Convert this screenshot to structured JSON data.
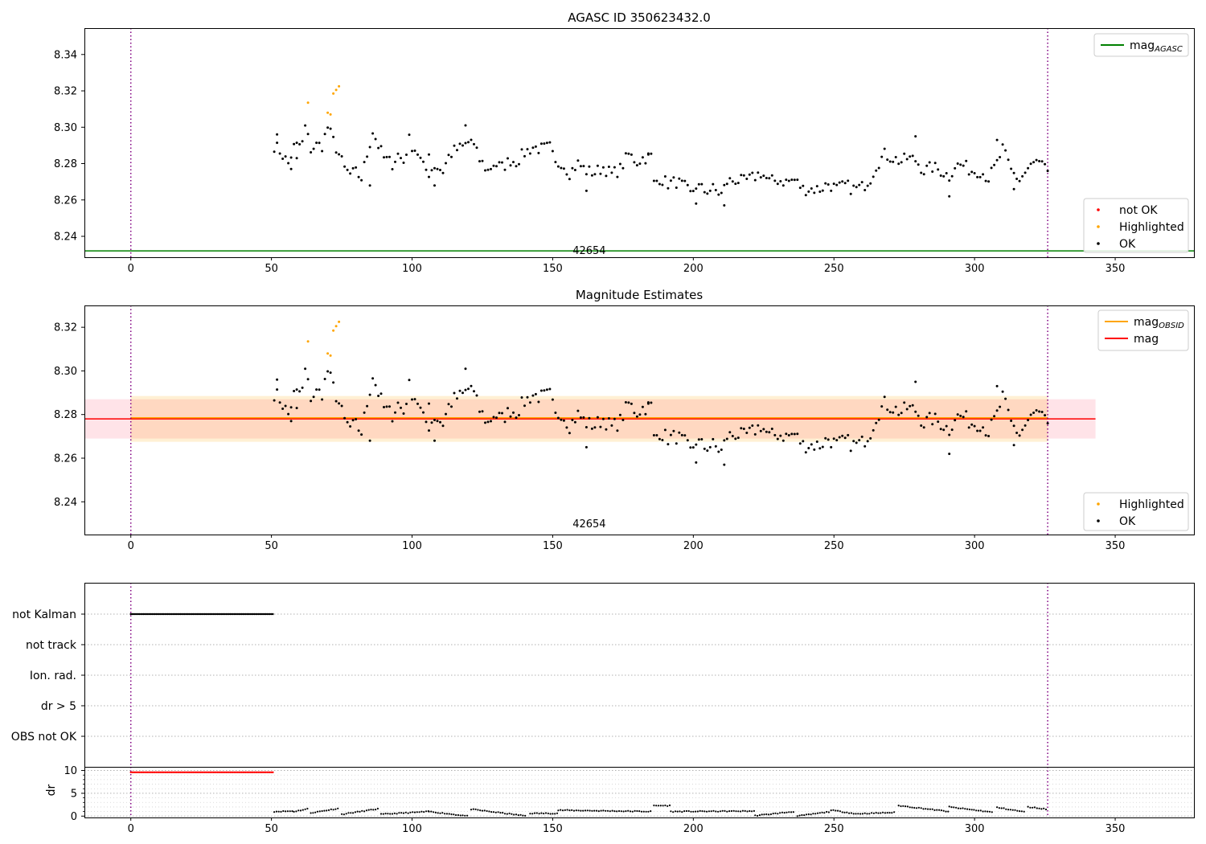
{
  "chart_data": [
    {
      "type": "scatter",
      "title": "AGASC ID 350623432.0",
      "xlim": [
        -16.5,
        378
      ],
      "ylim": [
        8.2285,
        8.3545
      ],
      "xticks": [
        0,
        50,
        100,
        150,
        200,
        250,
        300,
        350
      ],
      "yticks": [
        8.24,
        8.26,
        8.28,
        8.3,
        8.32,
        8.34
      ],
      "grid": false,
      "vlines": [
        0,
        326
      ],
      "hlines": [
        {
          "name": "mag_AGASC",
          "y": 8.232,
          "color": "#008000"
        }
      ],
      "annotation": {
        "text": "42654",
        "x": 163,
        "y": 8.2315
      },
      "legends": [
        {
          "placement": "upper right",
          "entries": [
            {
              "label": "mag",
              "sub": "AGASC",
              "kind": "line",
              "color": "#008000"
            }
          ]
        },
        {
          "placement": "lower right",
          "entries": [
            {
              "label": "not OK",
              "kind": "dot",
              "color": "#ff0000"
            },
            {
              "label": "Highlighted",
              "kind": "dot",
              "color": "#ffa500"
            },
            {
              "label": "OK",
              "kind": "dot",
              "color": "#000000"
            }
          ]
        }
      ],
      "series_ref": [
        "highlighted",
        "ok"
      ]
    },
    {
      "type": "scatter",
      "title": "Magnitude Estimates",
      "xlim": [
        -16.5,
        378
      ],
      "ylim": [
        8.225,
        8.33
      ],
      "xticks": [
        0,
        50,
        100,
        150,
        200,
        250,
        300,
        350
      ],
      "yticks": [
        8.24,
        8.26,
        8.28,
        8.3,
        8.32
      ],
      "grid": false,
      "vlines": [
        0,
        326
      ],
      "hlines": [
        {
          "name": "mag",
          "y": 8.278,
          "color": "#ff0000"
        },
        {
          "name": "mag_OBSID",
          "y": 8.2785,
          "x_range": [
            0,
            326
          ],
          "color": "#ffa500"
        }
      ],
      "bands": [
        {
          "x_range": [
            -16.5,
            343
          ],
          "y_range": [
            8.269,
            8.287
          ],
          "color": "#ffc0cb",
          "opacity": 0.45
        },
        {
          "x_range": [
            0,
            326
          ],
          "y_range": [
            8.2675,
            8.2885
          ],
          "color": "#ffa500",
          "opacity": 0.17
        }
      ],
      "annotation": {
        "text": "42654",
        "x": 163,
        "y": 8.2295
      },
      "legends": [
        {
          "placement": "upper right",
          "entries": [
            {
              "label": "mag",
              "sub": "OBSID",
              "kind": "line",
              "color": "#ffa500"
            },
            {
              "label": "mag",
              "kind": "line",
              "color": "#ff0000"
            }
          ]
        },
        {
          "placement": "lower right",
          "entries": [
            {
              "label": "Highlighted",
              "kind": "dot",
              "color": "#ffa500"
            },
            {
              "label": "OK",
              "kind": "dot",
              "color": "#000000"
            }
          ]
        }
      ],
      "series_ref": [
        "highlighted",
        "ok"
      ]
    },
    {
      "type": "scatter",
      "xlim": [
        -16.5,
        378
      ],
      "categories": [
        "not Kalman",
        "not track",
        "Ion. rad.",
        "dr > 5",
        "OBS not OK"
      ],
      "grid": true,
      "vlines": [
        0,
        326
      ],
      "flagged": {
        "category": "not Kalman",
        "x_range": [
          0,
          50.5
        ],
        "count": 101
      },
      "xticks": []
    },
    {
      "type": "scatter",
      "ylabel": "dr",
      "xlim": [
        -16.5,
        378
      ],
      "ylim": [
        -0.3,
        10.8
      ],
      "yticks": [
        0,
        5,
        10
      ],
      "xticks": [
        0,
        50,
        100,
        150,
        200,
        250,
        300,
        350
      ],
      "grid": true,
      "vlines": [
        0,
        326
      ],
      "flagged": {
        "y": 9.6,
        "x_range": [
          0,
          50.5
        ],
        "count": 101,
        "color": "#ff0000"
      },
      "dr_segments": [
        {
          "x": [
            51,
            58
          ],
          "y": [
            1.0,
            1.1
          ]
        },
        {
          "x": [
            58,
            63
          ],
          "y": [
            1.0,
            1.6
          ]
        },
        {
          "x": [
            64,
            74
          ],
          "y": [
            0.7,
            1.7
          ]
        },
        {
          "x": [
            75,
            88
          ],
          "y": [
            0.4,
            1.6
          ]
        },
        {
          "x": [
            89,
            106
          ],
          "y": [
            0.4,
            1.0
          ]
        },
        {
          "x": [
            106,
            120
          ],
          "y": [
            1.0,
            0.0
          ]
        },
        {
          "x": [
            121,
            141
          ],
          "y": [
            1.5,
            0.0
          ]
        },
        {
          "x": [
            142,
            152
          ],
          "y": [
            0.6,
            0.6
          ]
        },
        {
          "x": [
            152,
            185
          ],
          "y": [
            1.3,
            1.0
          ]
        },
        {
          "x": [
            186,
            192
          ],
          "y": [
            2.3,
            2.3
          ]
        },
        {
          "x": [
            192,
            222
          ],
          "y": [
            1.0,
            1.1
          ]
        },
        {
          "x": [
            222,
            236
          ],
          "y": [
            0.1,
            1.0
          ]
        },
        {
          "x": [
            237,
            249
          ],
          "y": [
            0.0,
            1.0
          ]
        },
        {
          "x": [
            249,
            257
          ],
          "y": [
            1.3,
            0.6
          ]
        },
        {
          "x": [
            257,
            272
          ],
          "y": [
            0.5,
            0.8
          ]
        },
        {
          "x": [
            273,
            291
          ],
          "y": [
            2.3,
            1.0
          ]
        },
        {
          "x": [
            291,
            307
          ],
          "y": [
            2.0,
            0.8
          ]
        },
        {
          "x": [
            308,
            318
          ],
          "y": [
            1.9,
            0.9
          ]
        },
        {
          "x": [
            319,
            326
          ],
          "y": [
            2.0,
            1.5
          ]
        }
      ]
    }
  ],
  "series": {
    "highlighted": {
      "name": "Highlighted",
      "color": "#ffa500",
      "x": [
        63,
        70,
        71,
        72,
        73,
        74
      ],
      "y": [
        8.3135,
        8.308,
        8.307,
        8.3185,
        8.3205,
        8.3225
      ]
    },
    "ok": {
      "name": "OK",
      "color": "#000000",
      "anchors_x": [
        51,
        53,
        56,
        58,
        61,
        62,
        64,
        66,
        68,
        70,
        74,
        76,
        78,
        80,
        82,
        86,
        88,
        90,
        93,
        95,
        97,
        99,
        100,
        102,
        104,
        106,
        108,
        111,
        113,
        115,
        118,
        121,
        124,
        127,
        129,
        132,
        135,
        137,
        140,
        143,
        146,
        149,
        151,
        153,
        156,
        159,
        162,
        165,
        168,
        171,
        174,
        177,
        180,
        182,
        185,
        186,
        188,
        191,
        194,
        197,
        199,
        201,
        204,
        207,
        210,
        212,
        215,
        218,
        221,
        224,
        227,
        230,
        233,
        236,
        239,
        242,
        245,
        248,
        251,
        254,
        257,
        260,
        263,
        265,
        268,
        271,
        274,
        276,
        279,
        282,
        285,
        288,
        291,
        293,
        296,
        299,
        302,
        305,
        308,
        310,
        313,
        316,
        319,
        322,
        326
      ],
      "anchors_y": [
        8.29,
        8.287,
        8.28,
        8.289,
        8.291,
        8.3,
        8.288,
        8.29,
        8.29,
        8.3,
        8.285,
        8.277,
        8.274,
        8.275,
        8.272,
        8.298,
        8.29,
        8.283,
        8.28,
        8.285,
        8.281,
        8.293,
        8.29,
        8.286,
        8.278,
        8.275,
        8.279,
        8.276,
        8.284,
        8.287,
        8.289,
        8.293,
        8.282,
        8.276,
        8.28,
        8.278,
        8.282,
        8.281,
        8.286,
        8.289,
        8.288,
        8.289,
        8.279,
        8.281,
        8.275,
        8.28,
        8.276,
        8.275,
        8.278,
        8.274,
        8.277,
        8.285,
        8.281,
        8.283,
        8.284,
        8.269,
        8.272,
        8.269,
        8.27,
        8.267,
        8.263,
        8.268,
        8.265,
        8.266,
        8.263,
        8.27,
        8.271,
        8.27,
        8.272,
        8.275,
        8.27,
        8.271,
        8.27,
        8.271,
        8.266,
        8.266,
        8.266,
        8.269,
        8.266,
        8.268,
        8.266,
        8.267,
        8.272,
        8.279,
        8.285,
        8.283,
        8.281,
        8.283,
        8.282,
        8.276,
        8.278,
        8.276,
        8.273,
        8.279,
        8.279,
        8.276,
        8.276,
        8.272,
        8.28,
        8.288,
        8.276,
        8.271,
        8.277,
        8.281,
        8.276
      ],
      "outliers_x": [
        52,
        57,
        59,
        85,
        106,
        108,
        119,
        162,
        184,
        201,
        211,
        279,
        291,
        308,
        314
      ],
      "outliers_y": [
        8.296,
        8.277,
        8.283,
        8.268,
        8.285,
        8.268,
        8.301,
        8.265,
        8.285,
        8.258,
        8.257,
        8.295,
        8.262,
        8.293,
        8.266
      ]
    }
  }
}
